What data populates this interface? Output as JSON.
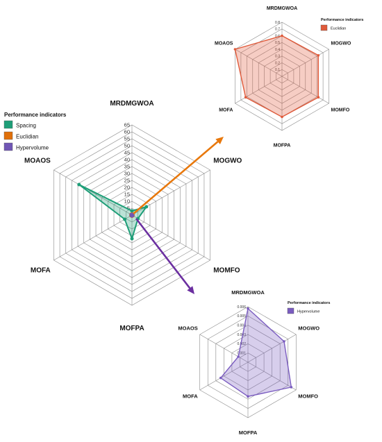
{
  "chart_data": [
    {
      "type": "radar",
      "axes": [
        "MRDMGWOA",
        "MOGWO",
        "MOMFO",
        "MOFPA",
        "MOFA",
        "MOAOS"
      ],
      "ticks": [
        "5",
        "10",
        "15",
        "20",
        "25",
        "30",
        "35",
        "40",
        "45",
        "50",
        "55",
        "60",
        "65"
      ],
      "rmax": 65,
      "grid": true,
      "legend": {
        "title": "Performance indicators",
        "placement": "top-left",
        "items": [
          {
            "label": "Spacing",
            "color": "#1e9e78"
          },
          {
            "label": "Euclidian",
            "color": "#e0700a"
          },
          {
            "label": "Hypervolume",
            "color": "#7056b5"
          }
        ]
      },
      "series": [
        {
          "name": "Spacing",
          "color": "#1e9e78",
          "values": [
            3,
            12,
            5,
            17,
            6,
            44
          ]
        },
        {
          "name": "Euclidian",
          "color": "#e0700a",
          "values": [
            0.8,
            0.8,
            0.8,
            0.8,
            0.8,
            0.8
          ]
        },
        {
          "name": "Hypervolume",
          "color": "#7056b5",
          "values": [
            0.5,
            0.6,
            0.6,
            0.6,
            0.6,
            0.6
          ]
        }
      ]
    },
    {
      "type": "radar",
      "axes": [
        "MRDMGWOA",
        "MOGWO",
        "MOMFO",
        "MOFPA",
        "MOFA",
        "MOAOS"
      ],
      "ticks": [
        "0.1",
        "0.2",
        "0.3",
        "0.4",
        "0.5",
        "0.6",
        "0.7",
        "0.8"
      ],
      "rmax": 0.8,
      "grid": true,
      "legend": {
        "title": "Performance indicators",
        "placement": "top-right",
        "items": [
          {
            "label": "Euclidian",
            "color": "#e05a3a"
          }
        ]
      },
      "series": [
        {
          "name": "Euclidian",
          "color": "#e05a3a",
          "values": [
            0.6,
            0.62,
            0.62,
            0.6,
            0.62,
            0.8
          ]
        }
      ]
    },
    {
      "type": "radar",
      "axes": [
        "MRDMGWOA",
        "MOGWO",
        "MOMFO",
        "MOFPA",
        "MOFA",
        "MOAOS"
      ],
      "ticks": [
        "0.001",
        "0.002",
        "0.003",
        "0.004",
        "0.005",
        "0.006"
      ],
      "rmax": 0.006,
      "grid": true,
      "legend": {
        "title": "Performance indicators",
        "placement": "top-right",
        "items": [
          {
            "label": "Hypervolume",
            "color": "#7a5cc0"
          }
        ]
      },
      "series": [
        {
          "name": "Hypervolume",
          "color": "#7a5cc0",
          "values": [
            0.0058,
            0.0045,
            0.0054,
            0.0037,
            0.0034,
            0.0012
          ]
        }
      ]
    }
  ],
  "colors": {
    "orange_arrow": "#e8780c",
    "purple_arrow": "#6b2fa0",
    "grid": "#888888"
  }
}
